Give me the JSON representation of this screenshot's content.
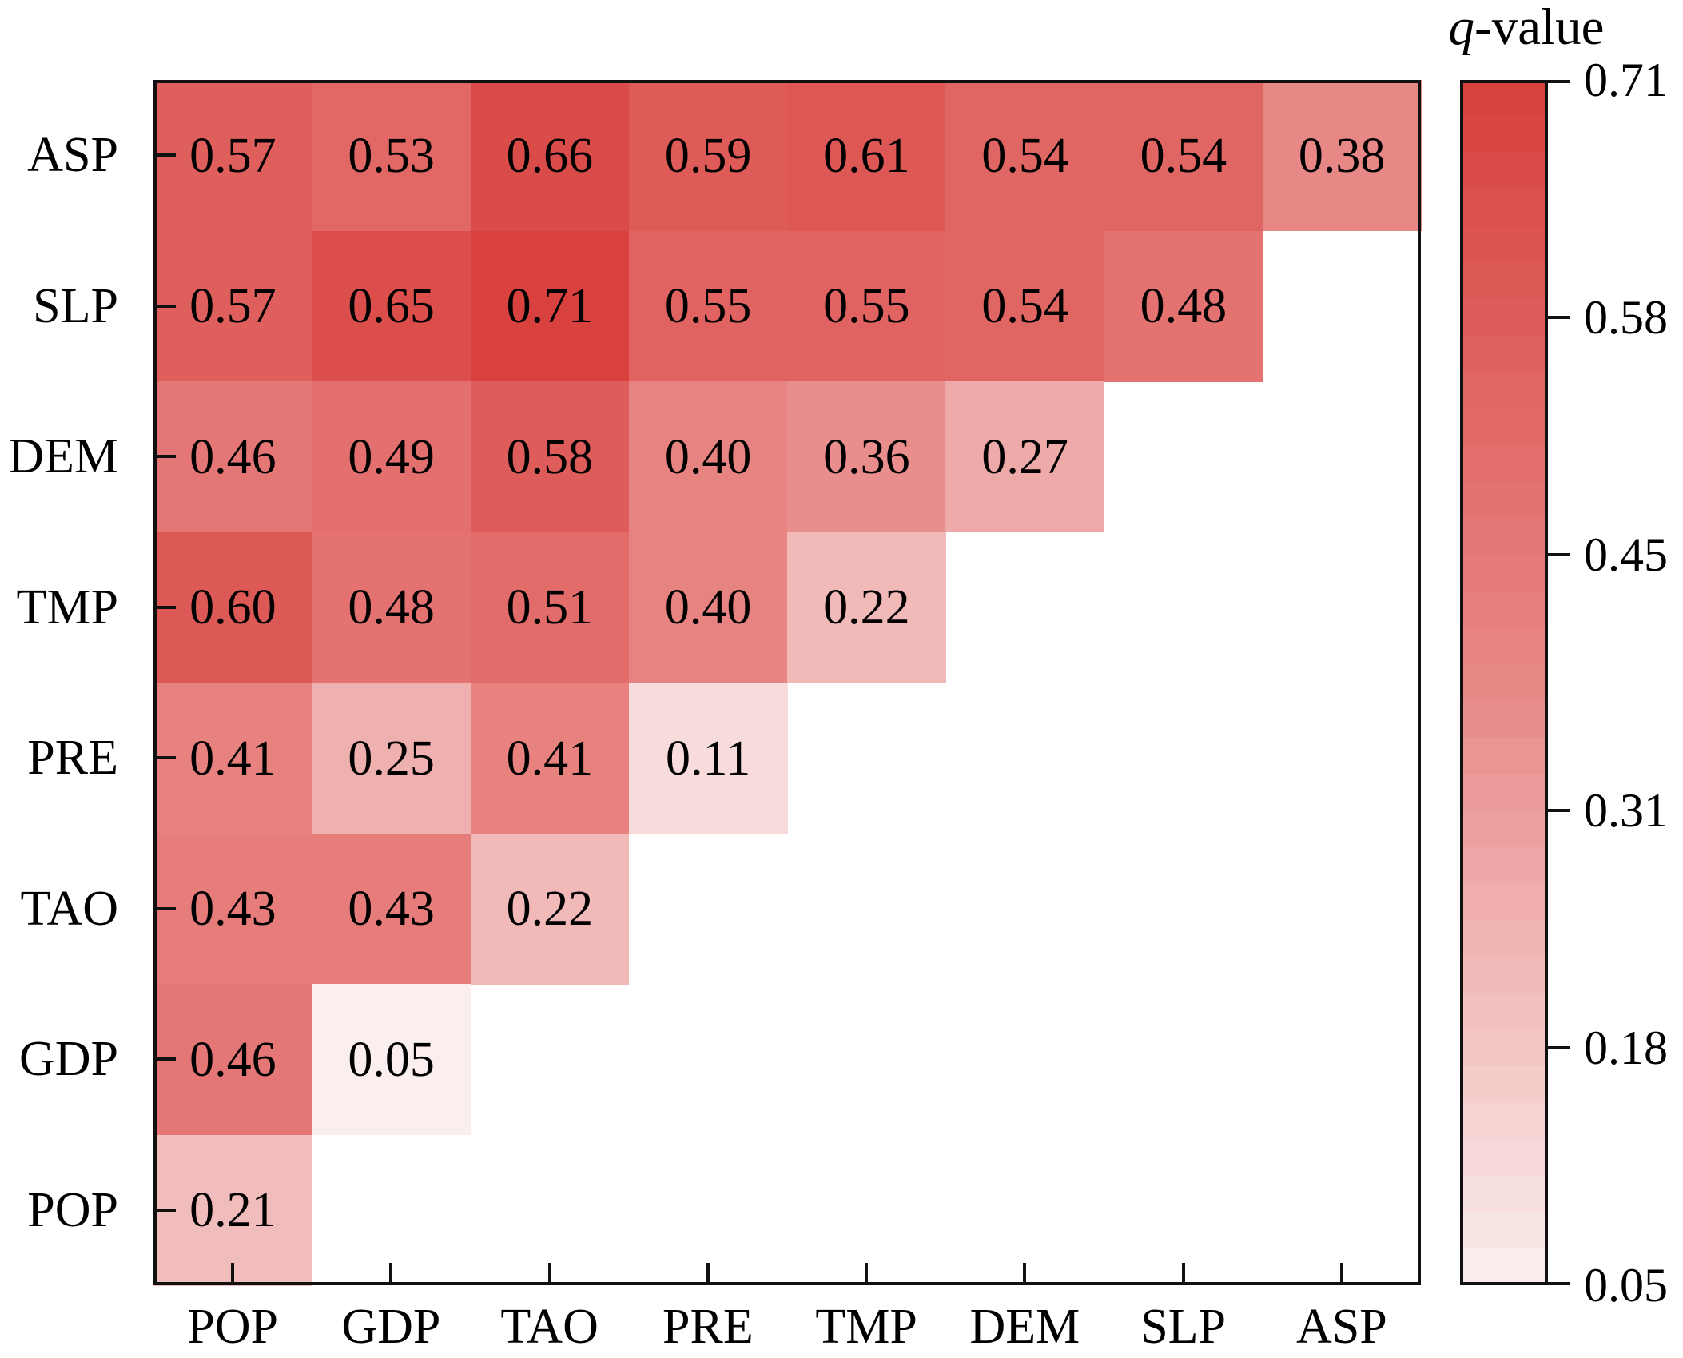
{
  "chart_data": {
    "type": "heatmap",
    "description": "Lower-triangular heatmap of q-values between factor pairs",
    "x_categories": [
      "POP",
      "GDP",
      "TAO",
      "PRE",
      "TMP",
      "DEM",
      "SLP",
      "ASP"
    ],
    "y_categories": [
      "ASP",
      "SLP",
      "DEM",
      "TMP",
      "PRE",
      "TAO",
      "GDP",
      "POP"
    ],
    "rows": [
      {
        "label": "ASP",
        "values": [
          0.57,
          0.53,
          0.66,
          0.59,
          0.61,
          0.54,
          0.54,
          0.38
        ]
      },
      {
        "label": "SLP",
        "values": [
          0.57,
          0.65,
          0.71,
          0.55,
          0.55,
          0.54,
          0.48
        ]
      },
      {
        "label": "DEM",
        "values": [
          0.46,
          0.49,
          0.58,
          0.4,
          0.36,
          0.27
        ]
      },
      {
        "label": "TMP",
        "values": [
          0.6,
          0.48,
          0.51,
          0.4,
          0.22
        ]
      },
      {
        "label": "PRE",
        "values": [
          0.41,
          0.25,
          0.41,
          0.11
        ]
      },
      {
        "label": "TAO",
        "values": [
          0.43,
          0.43,
          0.22
        ]
      },
      {
        "label": "GDP",
        "values": [
          0.46,
          0.05
        ]
      },
      {
        "label": "POP",
        "values": [
          0.21
        ]
      }
    ],
    "value_decimals": 2,
    "xlabel": "",
    "ylabel": "",
    "grid": false,
    "colorbar": {
      "title_italic": "q",
      "title_rest": "-value",
      "position": "right",
      "min": 0.05,
      "max": 0.71,
      "ticks": [
        "0.71",
        "0.58",
        "0.45",
        "0.31",
        "0.18",
        "0.05"
      ],
      "tick_values": [
        0.71,
        0.58,
        0.45,
        0.31,
        0.18,
        0.05
      ],
      "steps": 33,
      "color_stops": [
        {
          "value": 0.05,
          "color": "#FAEFEE"
        },
        {
          "value": 0.38,
          "color": "#E88886"
        },
        {
          "value": 0.71,
          "color": "#D8413E"
        }
      ]
    },
    "text_color": "#000000",
    "axis_color": "#111111"
  }
}
